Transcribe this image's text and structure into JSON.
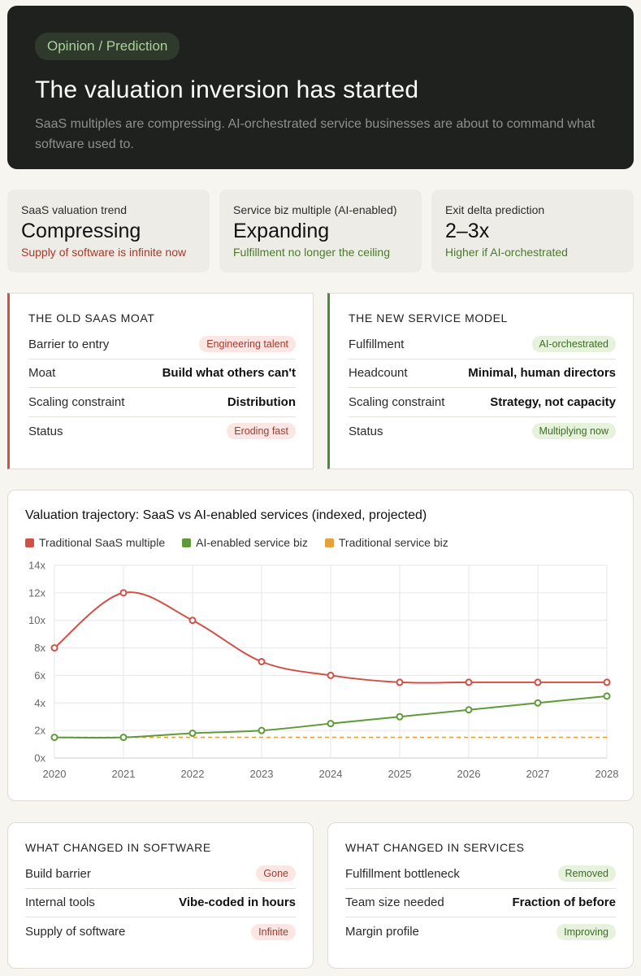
{
  "hero": {
    "tag": "Opinion / Prediction",
    "title": "The valuation inversion has started",
    "subtitle": "SaaS multiples are compressing. AI-orchestrated service businesses are about to command what software used to."
  },
  "stats": [
    {
      "label": "SaaS valuation trend",
      "value": "Compressing",
      "sub": "Supply of software is infinite now",
      "tone": "red"
    },
    {
      "label": "Service biz multiple (AI-enabled)",
      "value": "Expanding",
      "sub": "Fulfillment no longer the ceiling",
      "tone": "green"
    },
    {
      "label": "Exit delta prediction",
      "value": "2–3x",
      "sub": "Higher if AI-orchestrated",
      "tone": "green"
    }
  ],
  "old_moat": {
    "title": "The old SaaS moat",
    "rows": [
      {
        "key": "Barrier to entry",
        "value": "Engineering talent",
        "style": "badge-red"
      },
      {
        "key": "Moat",
        "value": "Build what others can't",
        "style": "bold"
      },
      {
        "key": "Scaling constraint",
        "value": "Distribution",
        "style": "bold"
      },
      {
        "key": "Status",
        "value": "Eroding fast",
        "style": "badge-red"
      }
    ]
  },
  "new_model": {
    "title": "The new service model",
    "rows": [
      {
        "key": "Fulfillment",
        "value": "AI-orchestrated",
        "style": "badge-green"
      },
      {
        "key": "Headcount",
        "value": "Minimal, human directors",
        "style": "bold"
      },
      {
        "key": "Scaling constraint",
        "value": "Strategy, not capacity",
        "style": "bold"
      },
      {
        "key": "Status",
        "value": "Multiplying now",
        "style": "badge-green"
      }
    ]
  },
  "chart_data": {
    "type": "line",
    "title": "Valuation trajectory: SaaS vs AI-enabled services (indexed, projected)",
    "x": [
      "2020",
      "2021",
      "2022",
      "2023",
      "2024",
      "2025",
      "2026",
      "2027",
      "2028"
    ],
    "y_ticks": [
      "0x",
      "2x",
      "4x",
      "6x",
      "8x",
      "10x",
      "12x",
      "14x"
    ],
    "ylim": [
      0,
      14
    ],
    "grid": true,
    "legend_position": "top-left",
    "series": [
      {
        "name": "Traditional SaaS multiple",
        "color": "#d24f45",
        "values": [
          8,
          12,
          10,
          7,
          6,
          5.5,
          5.5,
          5.5,
          5.5
        ],
        "markers": true,
        "dashed": false
      },
      {
        "name": "AI-enabled service biz",
        "color": "#5f9a38",
        "values": [
          1.5,
          1.5,
          1.8,
          2,
          2.5,
          3,
          3.5,
          4,
          4.5
        ],
        "markers": true,
        "dashed": false
      },
      {
        "name": "Traditional service biz",
        "color": "#e8a03a",
        "values": [
          1.5,
          1.5,
          1.5,
          1.5,
          1.5,
          1.5,
          1.5,
          1.5,
          1.5
        ],
        "markers": false,
        "dashed": true
      }
    ]
  },
  "software_changes": {
    "title": "What changed in software",
    "rows": [
      {
        "key": "Build barrier",
        "value": "Gone",
        "style": "badge-red"
      },
      {
        "key": "Internal tools",
        "value": "Vibe-coded in hours",
        "style": "bold"
      },
      {
        "key": "Supply of software",
        "value": "Infinite",
        "style": "badge-red"
      }
    ]
  },
  "service_changes": {
    "title": "What changed in services",
    "rows": [
      {
        "key": "Fulfillment bottleneck",
        "value": "Removed",
        "style": "badge-green"
      },
      {
        "key": "Team size needed",
        "value": "Fraction of before",
        "style": "bold"
      },
      {
        "key": "Margin profile",
        "value": "Improving",
        "style": "badge-green"
      }
    ]
  }
}
